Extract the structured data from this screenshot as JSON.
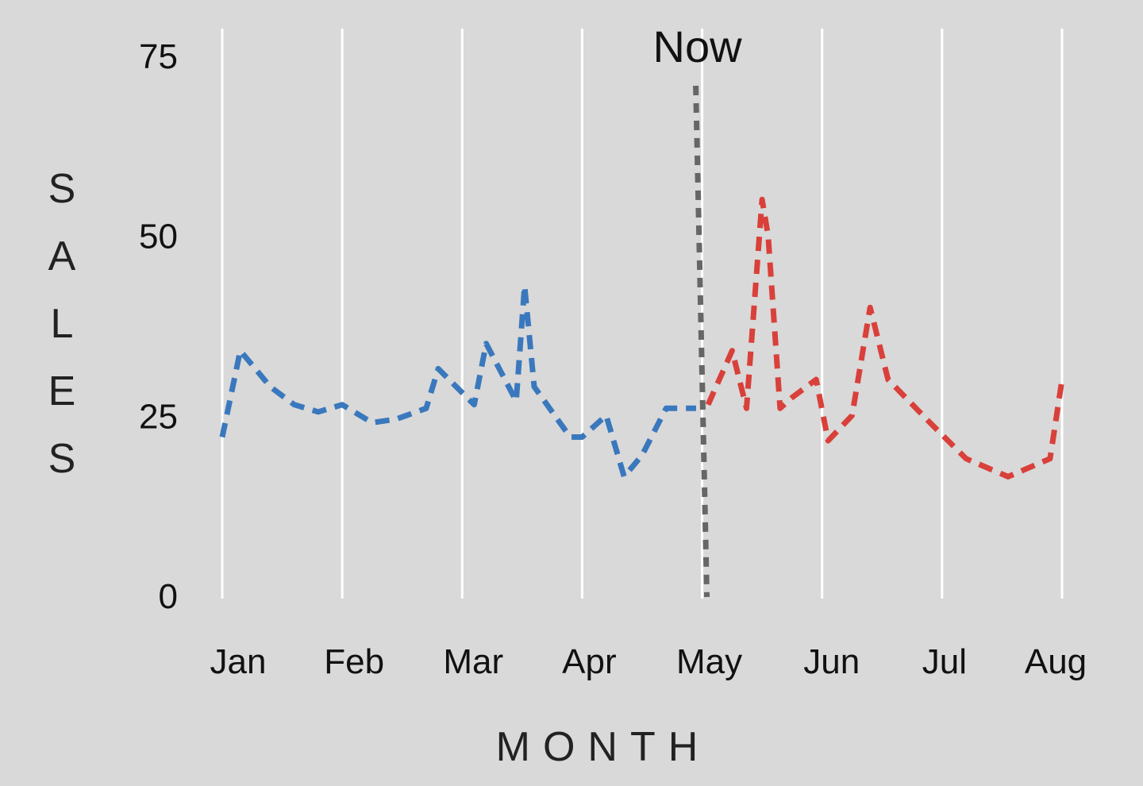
{
  "chart_data": {
    "type": "line",
    "title": "",
    "xlabel": "MONTH",
    "ylabel": "SALES",
    "ylim": [
      0,
      75
    ],
    "y_ticks": [
      0,
      25,
      50,
      75
    ],
    "x_range": [
      0,
      7
    ],
    "x_tick_labels": [
      "Jan",
      "Feb",
      "Mar",
      "Apr",
      "May",
      "Jun",
      "Jul",
      "Aug"
    ],
    "grid": "vertical",
    "now_line": {
      "label": "Now",
      "x": 4.0,
      "color": "#666666"
    },
    "colors": {
      "background": "#d9d9d9",
      "grid": "#ffffff",
      "history": "#3a78bd",
      "forecast": "#d9403a"
    },
    "series": [
      {
        "color": "#3a78bd",
        "x": [
          0.0,
          0.15,
          0.4,
          0.6,
          0.8,
          1.0,
          1.25,
          1.45,
          1.7,
          1.8,
          2.1,
          2.2,
          2.45,
          2.52,
          2.6,
          2.9,
          3.0,
          3.2,
          3.35,
          3.5,
          3.7,
          3.95
        ],
        "values": [
          22,
          34,
          29,
          26.5,
          25.5,
          26.5,
          24,
          24.5,
          26,
          31.5,
          26.5,
          35,
          27,
          43,
          29,
          22,
          22,
          25,
          16.5,
          19.5,
          26,
          26
        ]
      },
      {
        "color": "#d9403a",
        "x": [
          4.05,
          4.25,
          4.37,
          4.5,
          4.55,
          4.65,
          4.75,
          4.95,
          5.05,
          5.25,
          5.4,
          5.55,
          5.9,
          6.2,
          6.55,
          6.9,
          7.0
        ],
        "values": [
          26.5,
          34,
          26,
          55,
          50,
          26,
          27.5,
          30,
          21.5,
          25,
          40,
          30,
          24,
          19,
          16.5,
          19,
          30
        ]
      }
    ]
  }
}
